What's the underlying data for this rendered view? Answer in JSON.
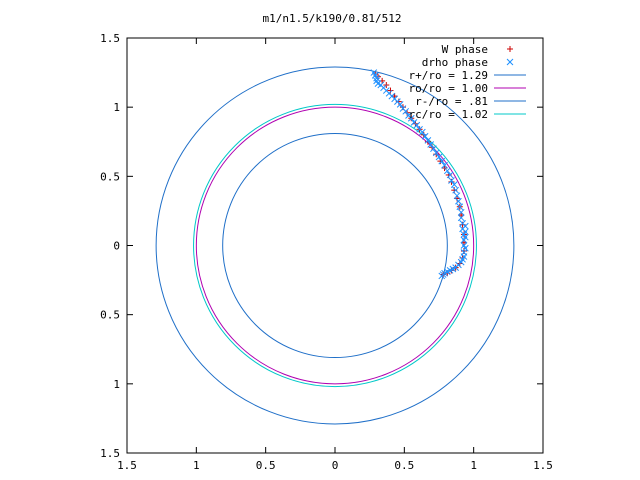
{
  "chart_data": {
    "type": "scatter",
    "title": "m1/n1.5/k190/0.81/512",
    "xlabel": "",
    "ylabel": "",
    "xlim": [
      -1.5,
      1.5
    ],
    "ylim": [
      -1.5,
      1.5
    ],
    "x_ticks": [
      -1.5,
      -1,
      -0.5,
      0,
      0.5,
      1,
      1.5
    ],
    "y_ticks": [
      -1.5,
      -1,
      -0.5,
      0,
      0.5,
      1,
      1.5
    ],
    "x_tick_labels": [
      "1.5",
      "1",
      "0.5",
      "0",
      "0.5",
      "1",
      "1.5"
    ],
    "y_tick_labels": [
      "1.5",
      "1",
      "0.5",
      "0",
      "0.5",
      "1",
      "1.5"
    ],
    "grid": false,
    "legend_position": "top-right",
    "circles": [
      {
        "name": "r+/ro = 1.29",
        "radius": 1.29,
        "color": "#1f6fc8"
      },
      {
        "name": "ro/ro = 1.00",
        "radius": 1.0,
        "color": "#b000b0"
      },
      {
        "name": "r-/ro = .81",
        "radius": 0.81,
        "color": "#1f6fc8"
      },
      {
        "name": "rc/ro = 1.02",
        "radius": 1.02,
        "color": "#00c8c8"
      }
    ],
    "series": [
      {
        "name": "W phase",
        "marker": "+",
        "color": "#cc0000",
        "points": [
          [
            0.29,
            1.24
          ],
          [
            0.31,
            1.22
          ],
          [
            0.34,
            1.19
          ],
          [
            0.37,
            1.16
          ],
          [
            0.4,
            1.12
          ],
          [
            0.43,
            1.08
          ],
          [
            0.46,
            1.04
          ],
          [
            0.49,
            1.0
          ],
          [
            0.52,
            0.96
          ],
          [
            0.55,
            0.92
          ],
          [
            0.58,
            0.88
          ],
          [
            0.61,
            0.84
          ],
          [
            0.64,
            0.8
          ],
          [
            0.67,
            0.75
          ],
          [
            0.7,
            0.71
          ],
          [
            0.73,
            0.66
          ],
          [
            0.76,
            0.61
          ],
          [
            0.79,
            0.56
          ],
          [
            0.82,
            0.51
          ],
          [
            0.84,
            0.46
          ],
          [
            0.86,
            0.4
          ],
          [
            0.88,
            0.34
          ],
          [
            0.9,
            0.28
          ],
          [
            0.91,
            0.22
          ],
          [
            0.92,
            0.15
          ],
          [
            0.93,
            0.08
          ],
          [
            0.93,
            0.02
          ],
          [
            0.93,
            -0.04
          ],
          [
            0.92,
            -0.09
          ],
          [
            0.9,
            -0.13
          ],
          [
            0.87,
            -0.16
          ],
          [
            0.84,
            -0.18
          ],
          [
            0.81,
            -0.2
          ],
          [
            0.78,
            -0.21
          ]
        ]
      },
      {
        "name": "drho phase",
        "marker": "x",
        "color": "#1e90ff",
        "points": [
          [
            0.28,
            1.25
          ],
          [
            0.29,
            1.23
          ],
          [
            0.3,
            1.21
          ],
          [
            0.3,
            1.19
          ],
          [
            0.31,
            1.17
          ],
          [
            0.33,
            1.16
          ],
          [
            0.35,
            1.14
          ],
          [
            0.37,
            1.12
          ],
          [
            0.39,
            1.1
          ],
          [
            0.41,
            1.08
          ],
          [
            0.43,
            1.06
          ],
          [
            0.45,
            1.04
          ],
          [
            0.47,
            1.02
          ],
          [
            0.49,
            0.99
          ],
          [
            0.51,
            0.97
          ],
          [
            0.53,
            0.94
          ],
          [
            0.55,
            0.92
          ],
          [
            0.57,
            0.89
          ],
          [
            0.59,
            0.87
          ],
          [
            0.61,
            0.84
          ],
          [
            0.63,
            0.82
          ],
          [
            0.65,
            0.79
          ],
          [
            0.67,
            0.76
          ],
          [
            0.69,
            0.73
          ],
          [
            0.71,
            0.7
          ],
          [
            0.73,
            0.67
          ],
          [
            0.75,
            0.64
          ],
          [
            0.77,
            0.61
          ],
          [
            0.79,
            0.58
          ],
          [
            0.81,
            0.54
          ],
          [
            0.83,
            0.51
          ],
          [
            0.84,
            0.47
          ],
          [
            0.86,
            0.44
          ],
          [
            0.87,
            0.4
          ],
          [
            0.88,
            0.36
          ],
          [
            0.89,
            0.32
          ],
          [
            0.9,
            0.28
          ],
          [
            0.91,
            0.24
          ],
          [
            0.91,
            0.2
          ],
          [
            0.92,
            0.16
          ],
          [
            0.92,
            0.12
          ],
          [
            0.93,
            0.08
          ],
          [
            0.93,
            0.04
          ],
          [
            0.93,
            0.0
          ],
          [
            0.94,
            0.06
          ],
          [
            0.94,
            0.1
          ],
          [
            0.94,
            0.14
          ],
          [
            0.94,
            -0.02
          ],
          [
            0.93,
            -0.05
          ],
          [
            0.93,
            -0.08
          ],
          [
            0.92,
            -0.1
          ],
          [
            0.91,
            -0.12
          ],
          [
            0.89,
            -0.14
          ],
          [
            0.87,
            -0.16
          ],
          [
            0.85,
            -0.17
          ],
          [
            0.83,
            -0.18
          ],
          [
            0.81,
            -0.19
          ],
          [
            0.79,
            -0.2
          ],
          [
            0.78,
            -0.21
          ],
          [
            0.77,
            -0.22
          ]
        ]
      }
    ]
  }
}
